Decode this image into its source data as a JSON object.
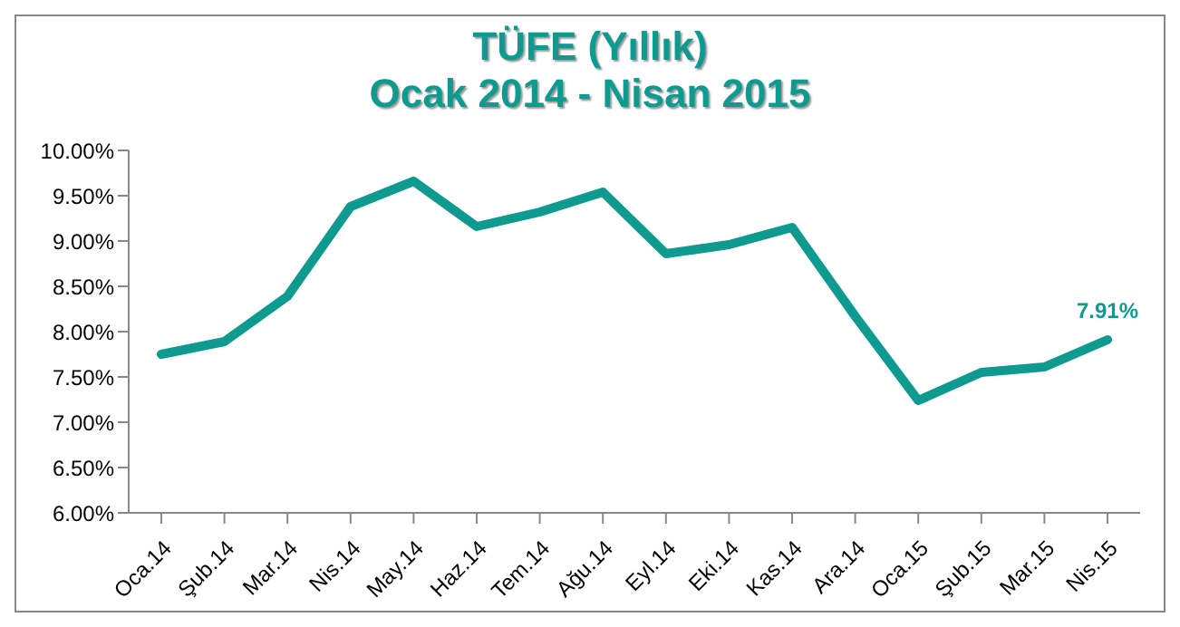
{
  "chart_data": {
    "type": "line",
    "title": "TÜFE (Yıllık)",
    "subtitle": "Ocak 2014 - Nisan 2015",
    "categories": [
      "Oca.14",
      "Şub.14",
      "Mar.14",
      "Nis.14",
      "May.14",
      "Haz.14",
      "Tem.14",
      "Ağu.14",
      "Eyl.14",
      "Eki.14",
      "Kas.14",
      "Ara.14",
      "Oca.15",
      "Şub.15",
      "Mar.15",
      "Nis.15"
    ],
    "series": [
      {
        "color": "#0e9a8f",
        "values": [
          7.75,
          7.89,
          8.39,
          9.38,
          9.66,
          9.16,
          9.32,
          9.54,
          8.86,
          8.96,
          9.15,
          8.17,
          7.24,
          7.55,
          7.61,
          7.91
        ],
        "value_labels": [
          null,
          null,
          null,
          null,
          null,
          null,
          null,
          null,
          null,
          null,
          null,
          null,
          null,
          null,
          null,
          "7.91%"
        ]
      }
    ],
    "ylim": [
      6,
      10
    ],
    "yticks": [
      {
        "value": 6,
        "label": "6.00%"
      },
      {
        "value": 6.5,
        "label": "6.50%"
      },
      {
        "value": 7,
        "label": "7.00%"
      },
      {
        "value": 7.5,
        "label": "7.50%"
      },
      {
        "value": 8,
        "label": "8.00%"
      },
      {
        "value": 8.5,
        "label": "8.50%"
      },
      {
        "value": 9,
        "label": "9.00%"
      },
      {
        "value": 9.5,
        "label": "9.50%"
      },
      {
        "value": 10,
        "label": "10.00%"
      }
    ],
    "grid": false,
    "legend": false,
    "marker": "none",
    "line_style": "solid"
  }
}
